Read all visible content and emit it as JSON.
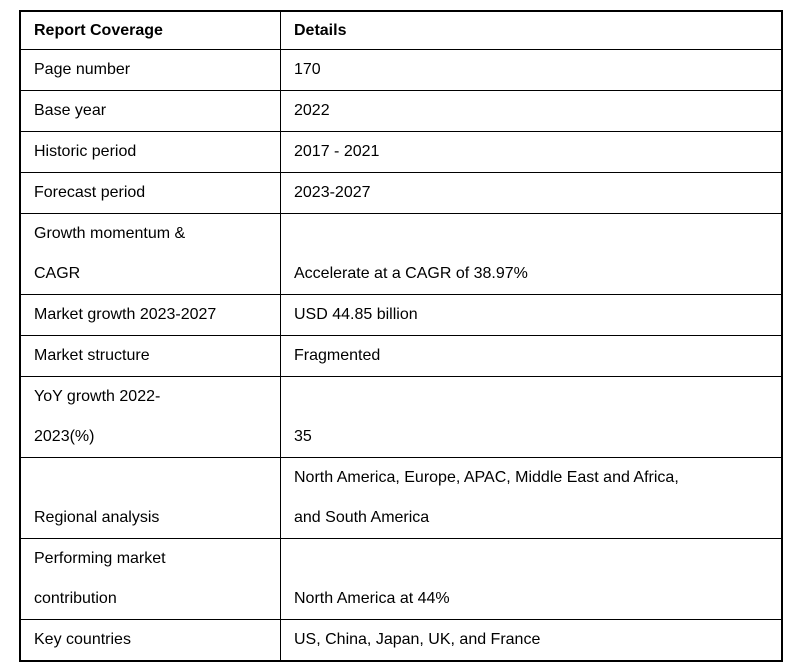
{
  "colors": {
    "border": "#000000",
    "text": "#000000",
    "background": "#ffffff"
  },
  "table": {
    "header": {
      "col1": "Report Coverage",
      "col2": "Details"
    },
    "rows": [
      {
        "label": [
          "Page number"
        ],
        "value": [
          "170"
        ]
      },
      {
        "label": [
          "Base year"
        ],
        "value": [
          "2022"
        ]
      },
      {
        "label": [
          "Historic period"
        ],
        "value": [
          "2017 - 2021"
        ]
      },
      {
        "label": [
          "Forecast period"
        ],
        "value": [
          "2023-2027"
        ]
      },
      {
        "label": [
          "Growth momentum &",
          "CAGR"
        ],
        "value": [
          "Accelerate at a CAGR of 38.97%"
        ]
      },
      {
        "label": [
          "Market growth 2023-2027"
        ],
        "value": [
          "USD 44.85 billion"
        ]
      },
      {
        "label": [
          "Market structure"
        ],
        "value": [
          "Fragmented"
        ]
      },
      {
        "label": [
          "YoY growth 2022-",
          "2023(%)"
        ],
        "value": [
          "35"
        ]
      },
      {
        "label": [
          "Regional analysis"
        ],
        "value": [
          "North America, Europe, APAC, Middle East and Africa,",
          "and South America"
        ]
      },
      {
        "label": [
          "Performing market",
          "contribution"
        ],
        "value": [
          "North America at 44%"
        ]
      },
      {
        "label": [
          "Key countries"
        ],
        "value": [
          "US, China, Japan, UK, and France"
        ]
      }
    ]
  }
}
